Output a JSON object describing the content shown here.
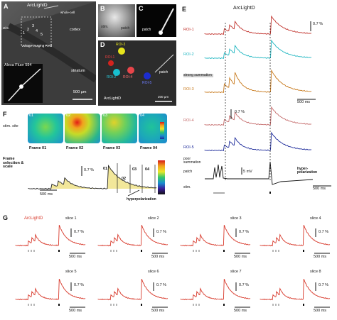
{
  "panelA": {
    "letter": "A",
    "title": "ArcLightD",
    "labels": [
      "whole-cell",
      "cortex",
      "striatum",
      "stim.",
      "Voltage Imaging Field",
      "Alexa Fluor 594"
    ],
    "roi_numbers": [
      "1",
      "2",
      "3",
      "4",
      "5"
    ],
    "scale": "500 μm"
  },
  "panelB": {
    "letter": "B",
    "labels": [
      "stim.",
      "patch"
    ]
  },
  "panelC": {
    "letter": "C",
    "labels": [
      "patch"
    ]
  },
  "panelD": {
    "letter": "D",
    "rois": [
      "ROI-1",
      "ROI-2",
      "ROI-3",
      "ROI-4",
      "ROI-5"
    ],
    "patch": "patch",
    "title": "ArcLightD",
    "scale": "200 μm"
  },
  "panelE": {
    "letter": "E",
    "title": "ArcLightD",
    "traces": [
      {
        "label": "ROI-1",
        "color": "#c0302a"
      },
      {
        "label": "ROI-2",
        "color": "#1fb6c1"
      },
      {
        "label": "ROI-3",
        "color": "#c7781a"
      },
      {
        "label": "ROI-4",
        "color": "#c46a6a"
      },
      {
        "label": "ROI-5",
        "color": "#1c2a9a"
      }
    ],
    "scale_pct": "0.7 %",
    "scale_pct2": "0.7 %",
    "scale_ms": "500 ms",
    "strong": "strong summation",
    "poor": "poor summation",
    "patch": "patch",
    "mv": "5 mV",
    "hyper": "hyper-polarization",
    "stim": "stim.",
    "scale_ms2": "500 ms"
  },
  "panelF": {
    "letter": "F",
    "frames": [
      "01",
      "02",
      "03",
      "04"
    ],
    "frame_labels": [
      "Frame 01",
      "Frame 02",
      "Frame 03",
      "Frame 04"
    ],
    "stim_site": "stim. site",
    "selection": "Frame selection & scale",
    "scale_pct": "0.7 %",
    "scale_ms": "500 ms",
    "hyper": "hyperpolarization",
    "markers": [
      "01",
      "02",
      "03",
      "04"
    ]
  },
  "panelG": {
    "letter": "G",
    "title": "ArcLightD",
    "slices": [
      "slice 1",
      "slice 2",
      "slice 3",
      "slice 4",
      "slice 5",
      "slice 6",
      "slice 7",
      "slice 8"
    ],
    "scale_pct": "0.7 %",
    "scale_ms": "500 ms"
  }
}
